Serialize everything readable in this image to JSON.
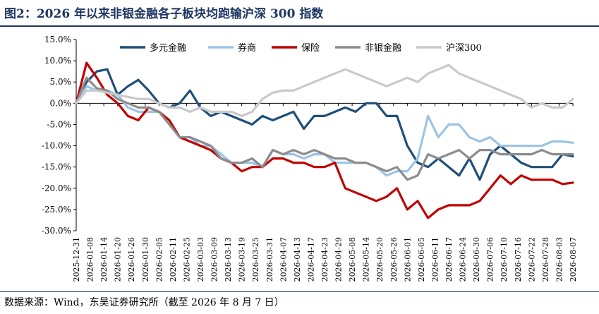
{
  "header": {
    "title": "图2：2026 年以来非银金融各子板块均跑输沪深 300 指数"
  },
  "footer": {
    "source": "数据来源：Wind，东吴证券研究所（截至 2026 年 8 月 7 日）"
  },
  "chart_data": {
    "type": "line",
    "ylim": [
      -30,
      15
    ],
    "yticks": [
      "15.0%",
      "10.0%",
      "5.0%",
      "0.0%",
      "-5.0%",
      "-10.0%",
      "-15.0%",
      "-20.0%",
      "-25.0%",
      "-30.0%"
    ],
    "ytick_values": [
      15,
      10,
      5,
      0,
      -5,
      -10,
      -15,
      -20,
      -25,
      -30
    ],
    "xticks": [
      "2025-12-31",
      "2026-01-08",
      "2026-01-14",
      "2026-01-20",
      "2026-01-26",
      "2026-01-30",
      "2026-02-05",
      "2026-02-11",
      "2026-02-25",
      "2026-03-03",
      "2026-03-09",
      "2026-03-13",
      "2026-03-19",
      "2026-03-25",
      "2026-03-31",
      "2026-04-07",
      "2026-04-13",
      "2026-04-17",
      "2026-04-23",
      "2026-04-29",
      "2026-05-08",
      "2026-05-14",
      "2026-05-20",
      "2026-05-26",
      "2026-06-01",
      "2026-06-05",
      "2026-06-11",
      "2026-06-17",
      "2026-06-24",
      "2026-06-30",
      "2026-07-06",
      "2026-07-10",
      "2026-07-16",
      "2026-07-22",
      "2026-07-28",
      "2026-08-03",
      "2026-08-07"
    ],
    "legend_position": "top",
    "series": [
      {
        "name": "多元金融",
        "color": "#1f4e79",
        "values": [
          0,
          5,
          7.5,
          8,
          2,
          4,
          5.5,
          3,
          0,
          -1,
          0,
          3,
          -1,
          -3,
          -2,
          -3,
          -4,
          -5,
          -3,
          -4,
          -3,
          -2,
          -6,
          -3,
          -3,
          -2,
          -1,
          -2,
          0,
          0,
          -3,
          -3,
          -10,
          -14,
          -15,
          -13,
          -15,
          -17,
          -13,
          -18,
          -12,
          -10,
          -12,
          -14,
          -15,
          -15,
          -15,
          -12,
          -12.5
        ]
      },
      {
        "name": "券商",
        "color": "#9dc3e6",
        "values": [
          0,
          4,
          3,
          3,
          2,
          -1,
          -2,
          -2,
          -2,
          -5,
          -8,
          -8,
          -10,
          -10,
          -12,
          -14,
          -14,
          -14,
          -15,
          -11,
          -12,
          -12,
          -13,
          -12,
          -12,
          -14,
          -14,
          -14,
          -14,
          -15,
          -17,
          -16,
          -16,
          -13,
          -3,
          -8,
          -5,
          -5,
          -8,
          -9,
          -8,
          -10,
          -10,
          -10,
          -10,
          -10,
          -9,
          -9,
          -9.3
        ]
      },
      {
        "name": "保险",
        "color": "#c00000",
        "values": [
          0,
          9.5,
          6,
          2,
          0,
          -3,
          -4,
          -1,
          -2,
          -4,
          -8,
          -9,
          -10,
          -11,
          -13,
          -14,
          -16,
          -15,
          -15,
          -13,
          -13,
          -14,
          -14,
          -15,
          -15,
          -14,
          -20,
          -21,
          -22,
          -23,
          -22,
          -20,
          -25,
          -23,
          -27,
          -25,
          -24,
          -24,
          -24,
          -23,
          -20,
          -17,
          -19,
          -17,
          -18,
          -18,
          -18,
          -19,
          -18.7
        ]
      },
      {
        "name": "非银金融",
        "color": "#8c8c8c",
        "values": [
          0,
          6,
          3.5,
          3,
          1,
          0,
          -1,
          -1,
          -2,
          -5,
          -8,
          -8,
          -9,
          -10,
          -13,
          -14,
          -14,
          -13,
          -15,
          -11,
          -12,
          -11,
          -12,
          -11,
          -12,
          -13,
          -13,
          -14,
          -14,
          -15,
          -16,
          -15,
          -18,
          -17,
          -12,
          -13,
          -12,
          -11,
          -13,
          -11,
          -11,
          -12,
          -12,
          -12,
          -12,
          -11,
          -12,
          -12,
          -12
        ]
      },
      {
        "name": "沪深300",
        "color": "#c9c9c9",
        "values": [
          0,
          3,
          3,
          2.5,
          2,
          1.5,
          1,
          1,
          0,
          -1,
          -1,
          -2,
          -1,
          -2,
          -2,
          -2,
          -3,
          -2,
          1,
          2.5,
          3,
          3,
          4,
          5,
          6,
          7,
          8,
          7,
          6,
          5,
          4,
          5,
          6,
          5,
          7,
          8,
          9,
          7,
          6,
          5,
          4,
          3,
          2,
          1,
          -1,
          0,
          -1,
          -1,
          1
        ]
      }
    ]
  }
}
